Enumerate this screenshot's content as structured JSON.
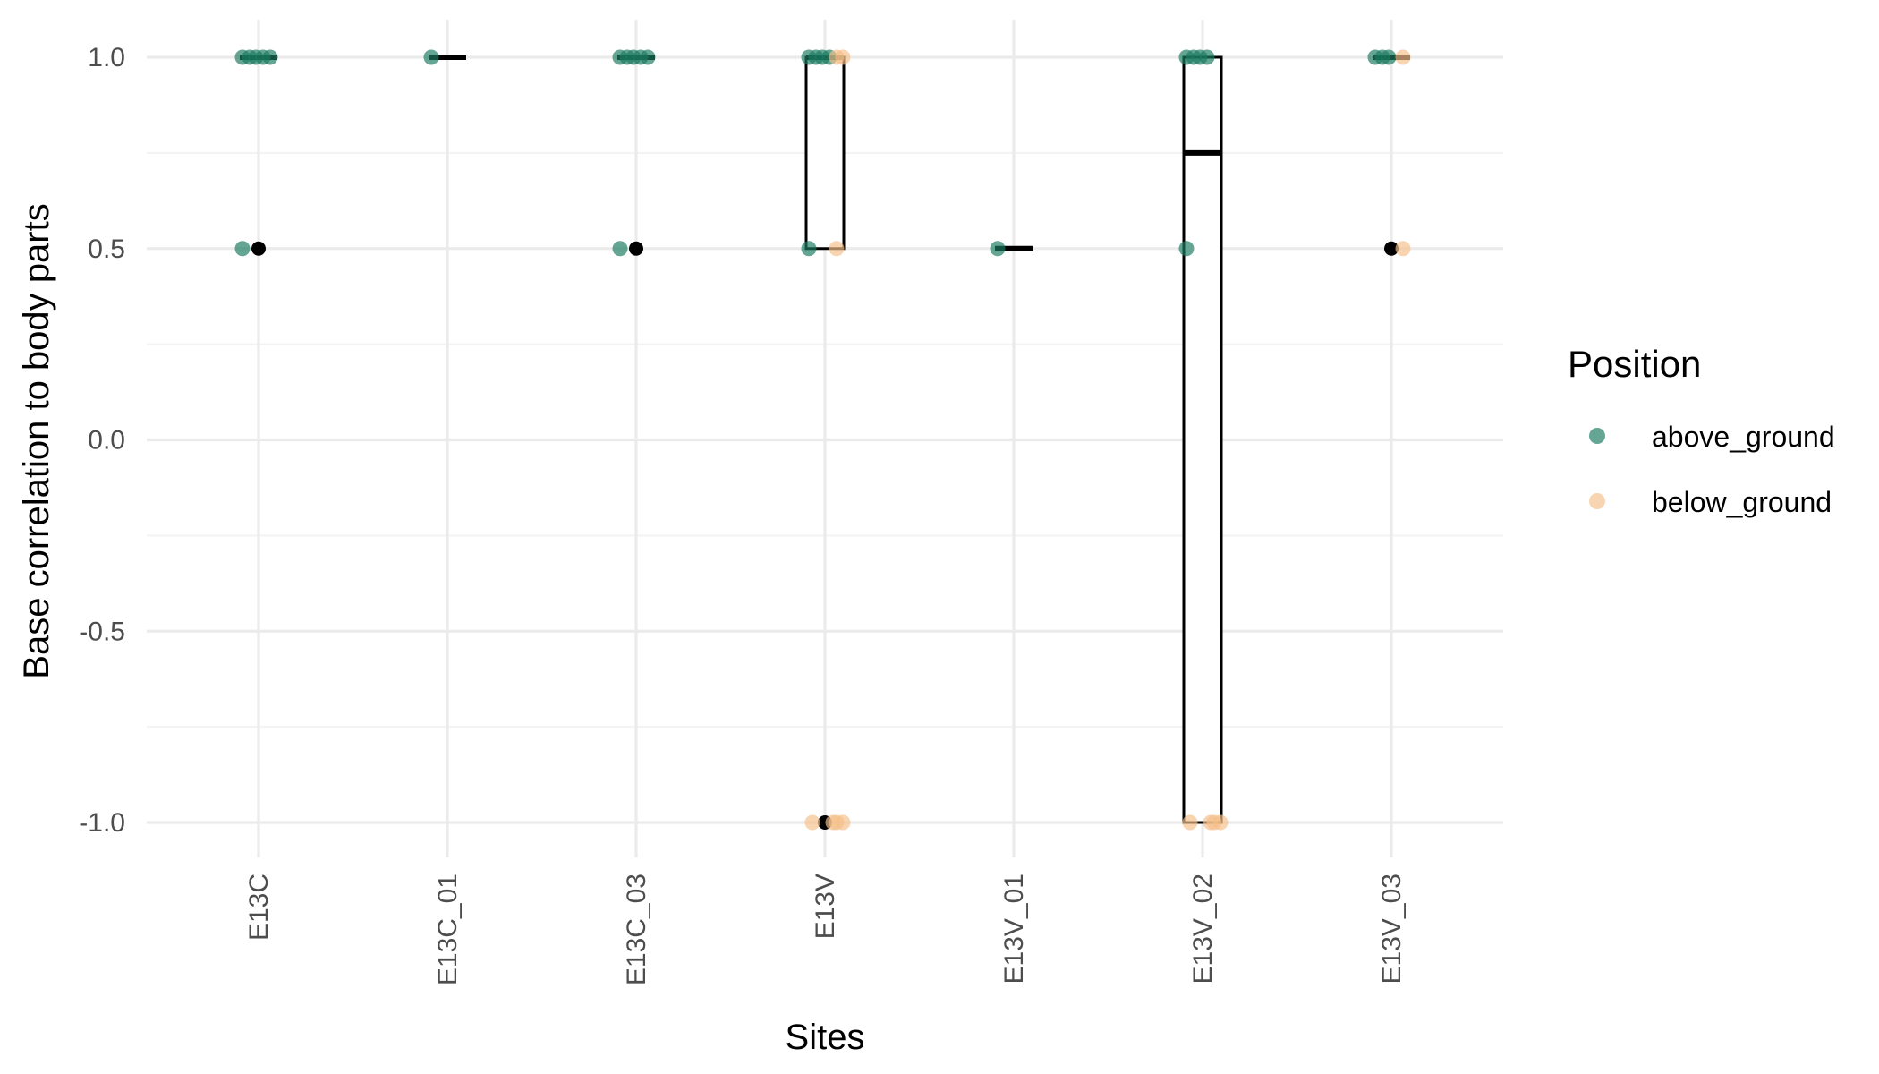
{
  "chart_data": {
    "type": "box",
    "title": "",
    "xlabel": "Sites",
    "ylabel": "Base correlation to body parts",
    "ylim": [
      -1.1,
      1.1
    ],
    "y_major_ticks": [
      1.0,
      0.5,
      0.0,
      -0.5,
      -1.0
    ],
    "y_tick_labels": [
      "1.0",
      "0.5",
      "0.0",
      "-0.5",
      "-1.0"
    ],
    "y_minor_ticks": [
      0.75,
      0.25,
      -0.25,
      -0.75
    ],
    "grid": true,
    "categories": [
      "E13C",
      "E13C_01",
      "E13C_03",
      "E13V",
      "E13V_01",
      "E13V_02",
      "E13V_03"
    ],
    "boxes": [
      {
        "category": "E13C",
        "q1": 1.0,
        "median": 1.0,
        "q3": 1.0,
        "outliers": [
          0.5
        ]
      },
      {
        "category": "E13C_01",
        "q1": 1.0,
        "median": 1.0,
        "q3": 1.0,
        "outliers": []
      },
      {
        "category": "E13C_03",
        "q1": 1.0,
        "median": 1.0,
        "q3": 1.0,
        "outliers": [
          0.5
        ]
      },
      {
        "category": "E13V",
        "q1": 0.5,
        "median": 1.0,
        "q3": 1.0,
        "outliers": [
          -1.0
        ]
      },
      {
        "category": "E13V_01",
        "q1": 0.5,
        "median": 0.5,
        "q3": 0.5,
        "outliers": []
      },
      {
        "category": "E13V_02",
        "q1": -1.0,
        "median": 0.75,
        "q3": 1.0,
        "outliers": []
      },
      {
        "category": "E13V_03",
        "q1": 1.0,
        "median": 1.0,
        "q3": 1.0,
        "outliers": [
          0.5
        ]
      }
    ],
    "legend": {
      "title": "Position",
      "placement": "right",
      "entries": [
        {
          "label": "above_ground",
          "color": "#1b7a60"
        },
        {
          "label": "below_ground",
          "color": "#f5c08a"
        }
      ]
    },
    "series": [
      {
        "name": "above_ground",
        "color": "#1b7a60",
        "points": [
          {
            "x": "E13C",
            "y": 1.0
          },
          {
            "x": "E13C",
            "y": 1.0
          },
          {
            "x": "E13C",
            "y": 1.0
          },
          {
            "x": "E13C",
            "y": 1.0
          },
          {
            "x": "E13C",
            "y": 1.0
          },
          {
            "x": "E13C",
            "y": 0.5
          },
          {
            "x": "E13C_01",
            "y": 1.0
          },
          {
            "x": "E13C_03",
            "y": 1.0
          },
          {
            "x": "E13C_03",
            "y": 1.0
          },
          {
            "x": "E13C_03",
            "y": 1.0
          },
          {
            "x": "E13C_03",
            "y": 1.0
          },
          {
            "x": "E13C_03",
            "y": 1.0
          },
          {
            "x": "E13C_03",
            "y": 0.5
          },
          {
            "x": "E13V",
            "y": 1.0
          },
          {
            "x": "E13V",
            "y": 1.0
          },
          {
            "x": "E13V",
            "y": 1.0
          },
          {
            "x": "E13V",
            "y": 1.0
          },
          {
            "x": "E13V",
            "y": 0.5
          },
          {
            "x": "E13V_01",
            "y": 0.5
          },
          {
            "x": "E13V_02",
            "y": 1.0
          },
          {
            "x": "E13V_02",
            "y": 1.0
          },
          {
            "x": "E13V_02",
            "y": 1.0
          },
          {
            "x": "E13V_02",
            "y": 1.0
          },
          {
            "x": "E13V_02",
            "y": 0.5
          },
          {
            "x": "E13V_03",
            "y": 1.0
          },
          {
            "x": "E13V_03",
            "y": 1.0
          },
          {
            "x": "E13V_03",
            "y": 1.0
          }
        ]
      },
      {
        "name": "below_ground",
        "color": "#f5c08a",
        "points": [
          {
            "x": "E13V",
            "y": 1.0
          },
          {
            "x": "E13V",
            "y": 1.0
          },
          {
            "x": "E13V",
            "y": 0.5
          },
          {
            "x": "E13V",
            "y": -1.0
          },
          {
            "x": "E13V",
            "y": -1.0
          },
          {
            "x": "E13V",
            "y": -1.0
          },
          {
            "x": "E13V",
            "y": -1.0
          },
          {
            "x": "E13V_02",
            "y": -1.0
          },
          {
            "x": "E13V_02",
            "y": -1.0
          },
          {
            "x": "E13V_02",
            "y": -1.0
          },
          {
            "x": "E13V_02",
            "y": -1.0
          },
          {
            "x": "E13V_03",
            "y": 1.0
          },
          {
            "x": "E13V_03",
            "y": 0.5
          }
        ]
      }
    ]
  }
}
